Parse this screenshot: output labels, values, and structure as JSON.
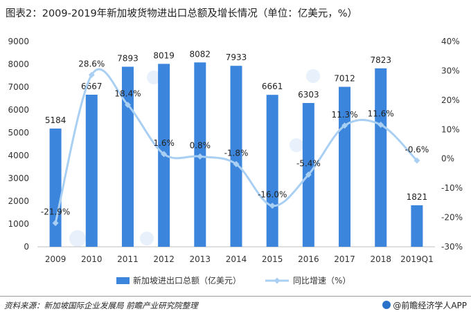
{
  "title": "图表2：2009-2019年新加坡货物进出口总额及增长情况（单位：亿美元，%）",
  "source": "资料来源：新加坡国际企业发展局 前瞻产业研究院整理",
  "brand": "@前瞻经济学人APP",
  "colors": {
    "bar": "#3b85dd",
    "line": "#a9cff3",
    "axis": "#bfbfbf"
  },
  "chart_data": {
    "type": "bar",
    "categories": [
      "2009",
      "2010",
      "2011",
      "2012",
      "2013",
      "2014",
      "2015",
      "2016",
      "2017",
      "2018",
      "2019Q1"
    ],
    "series": [
      {
        "name": "新加坡进出口总额（亿美元）",
        "type": "bar",
        "axis": "left",
        "values": [
          5184,
          6667,
          7893,
          8019,
          8082,
          7933,
          6661,
          6303,
          7012,
          7823,
          1821
        ],
        "labels": [
          "5184",
          "6667",
          "7893",
          "8019",
          "8082",
          "7933",
          "6661",
          "6303",
          "7012",
          "7823",
          "1821"
        ]
      },
      {
        "name": "同比增速（%）",
        "type": "line",
        "axis": "right",
        "smooth": true,
        "values": [
          -21.9,
          28.6,
          18.4,
          1.6,
          0.8,
          -1.8,
          -16.0,
          -5.4,
          11.3,
          11.6,
          -0.6
        ],
        "labels": [
          "-21.9%",
          "28.6%",
          "18.4%",
          "1.6%",
          "0.8%",
          "-1.8%",
          "-16.0%",
          "-5.4%",
          "11.3%",
          "11.6%",
          "-0.6%"
        ]
      }
    ],
    "y_left": {
      "min": 0,
      "max": 9000,
      "ticks": [
        "0",
        "1000",
        "2000",
        "3000",
        "4000",
        "5000",
        "6000",
        "7000",
        "8000",
        "9000"
      ]
    },
    "y_right": {
      "min": -30,
      "max": 40,
      "ticks": [
        "-30%",
        "-20%",
        "-10%",
        "0%",
        "10%",
        "20%",
        "30%",
        "40%"
      ]
    },
    "legend_position": "bottom-center",
    "grid": false
  }
}
